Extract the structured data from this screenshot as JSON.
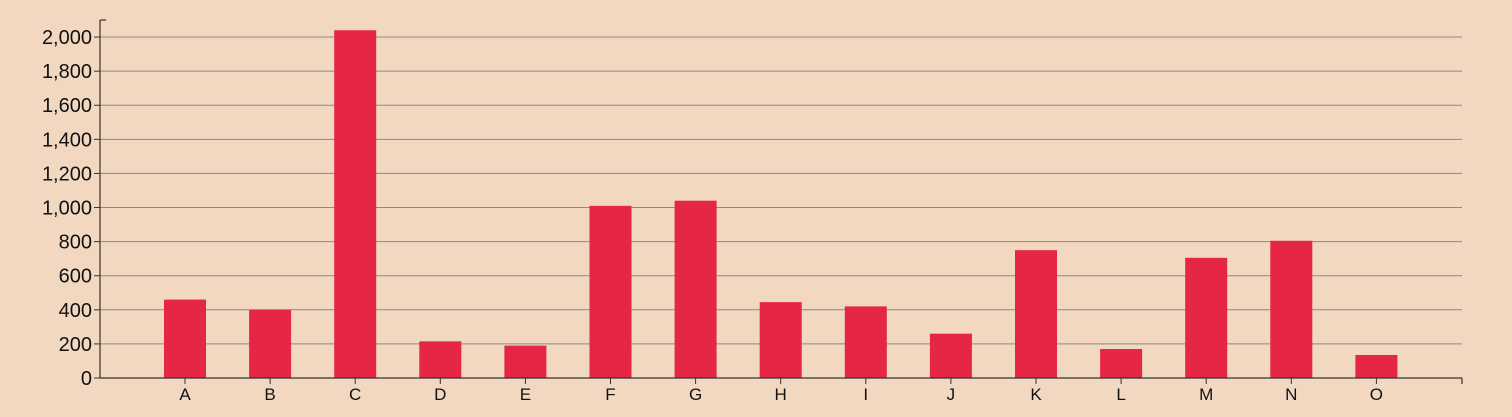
{
  "chart_data": {
    "type": "bar",
    "title": "",
    "xlabel": "",
    "ylabel": "",
    "categories": [
      "A",
      "B",
      "C",
      "D",
      "E",
      "F",
      "G",
      "H",
      "I",
      "J",
      "K",
      "L",
      "M",
      "N",
      "O"
    ],
    "values": [
      460,
      400,
      2040,
      215,
      190,
      1010,
      1040,
      445,
      420,
      260,
      750,
      170,
      705,
      805,
      135
    ],
    "ylim": [
      0,
      2100
    ],
    "yticks": [
      "0",
      "200",
      "400",
      "600",
      "800",
      "1,000",
      "1,200",
      "1,400",
      "1,600",
      "1,800",
      "2,000"
    ],
    "ytick_values": [
      0,
      200,
      400,
      600,
      800,
      1000,
      1200,
      1400,
      1600,
      1800,
      2000
    ],
    "grid": true,
    "colors": {
      "background": "#f2d8c0",
      "bar": "#e52645",
      "grid": "#8a8a8a",
      "axis": "#333333",
      "text": "#111111"
    }
  }
}
